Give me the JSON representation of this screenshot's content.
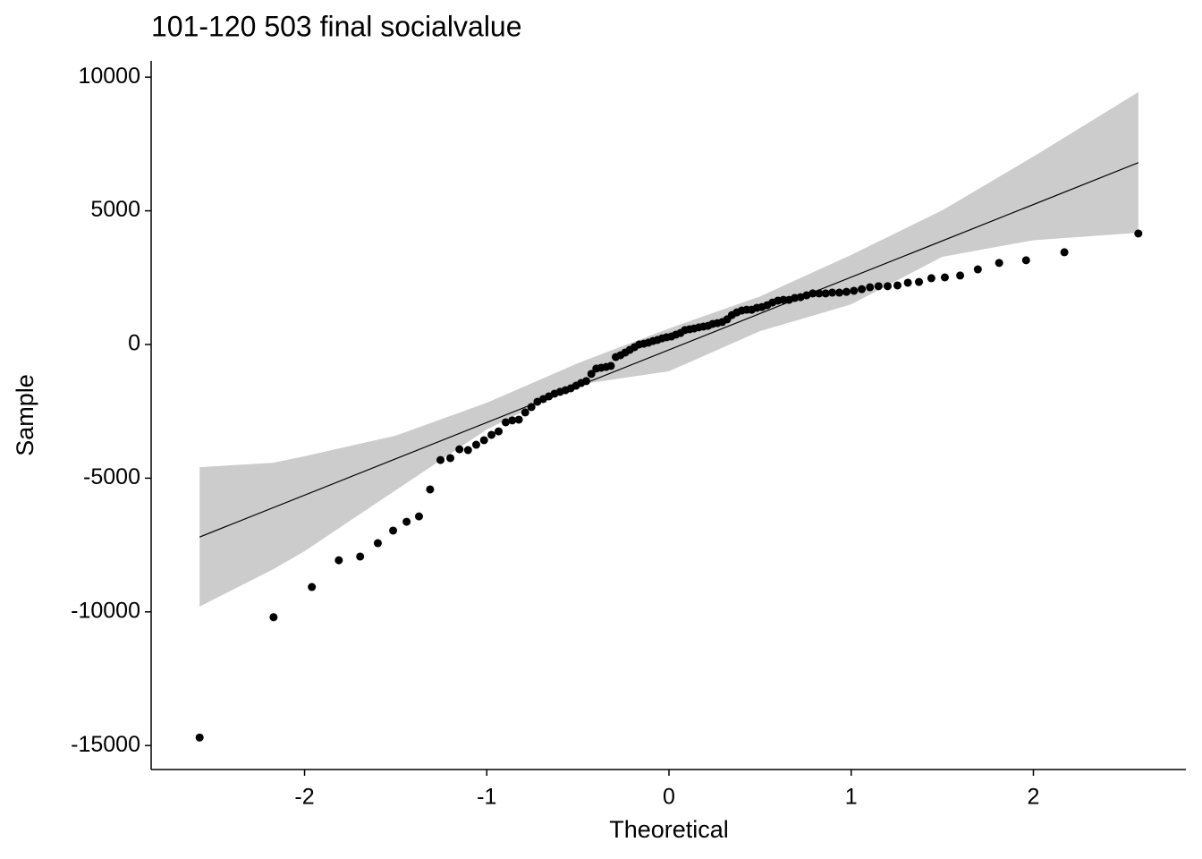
{
  "chart_data": {
    "type": "scatter",
    "title": "101-120 503 final socialvalue",
    "x_label": "Theoretical",
    "y_label": "Sample",
    "x": [
      -2.576,
      -2.17,
      -1.96,
      -1.812,
      -1.695,
      -1.598,
      -1.514,
      -1.44,
      -1.372,
      -1.311,
      -1.254,
      -1.2,
      -1.15,
      -1.103,
      -1.058,
      -1.015,
      -0.974,
      -0.935,
      -0.896,
      -0.86,
      -0.824,
      -0.789,
      -0.755,
      -0.722,
      -0.69,
      -0.659,
      -0.628,
      -0.598,
      -0.568,
      -0.539,
      -0.51,
      -0.482,
      -0.454,
      -0.426,
      -0.399,
      -0.372,
      -0.345,
      -0.319,
      -0.292,
      -0.266,
      -0.24,
      -0.215,
      -0.189,
      -0.164,
      -0.138,
      -0.113,
      -0.088,
      -0.063,
      -0.038,
      -0.013,
      0.013,
      0.038,
      0.063,
      0.088,
      0.113,
      0.138,
      0.164,
      0.189,
      0.215,
      0.24,
      0.266,
      0.292,
      0.319,
      0.345,
      0.372,
      0.399,
      0.426,
      0.454,
      0.482,
      0.51,
      0.539,
      0.568,
      0.598,
      0.628,
      0.659,
      0.69,
      0.722,
      0.755,
      0.789,
      0.824,
      0.86,
      0.896,
      0.935,
      0.974,
      1.015,
      1.058,
      1.103,
      1.15,
      1.2,
      1.254,
      1.311,
      1.372,
      1.44,
      1.514,
      1.598,
      1.695,
      1.812,
      1.96,
      2.17,
      2.576
    ],
    "y": [
      -14700,
      -10200,
      -9070,
      -8070,
      -7930,
      -7430,
      -6960,
      -6630,
      -6430,
      -5420,
      -4320,
      -4250,
      -3920,
      -3950,
      -3750,
      -3580,
      -3380,
      -3250,
      -2910,
      -2840,
      -2810,
      -2540,
      -2340,
      -2140,
      -2040,
      -1940,
      -1840,
      -1770,
      -1710,
      -1640,
      -1540,
      -1440,
      -1370,
      -1100,
      -900,
      -870,
      -840,
      -800,
      -470,
      -400,
      -300,
      -200,
      -100,
      0,
      30,
      70,
      130,
      170,
      230,
      270,
      300,
      370,
      430,
      540,
      570,
      600,
      640,
      670,
      700,
      770,
      800,
      840,
      940,
      1100,
      1200,
      1270,
      1300,
      1300,
      1370,
      1400,
      1470,
      1570,
      1640,
      1670,
      1670,
      1740,
      1770,
      1840,
      1910,
      1910,
      1910,
      1940,
      1940,
      1970,
      2010,
      2070,
      2140,
      2180,
      2180,
      2210,
      2310,
      2340,
      2480,
      2510,
      2580,
      2810,
      3050,
      3150,
      3450,
      4150
    ],
    "color": "#000000",
    "reference_line": {
      "x": [
        -2.576,
        2.576
      ],
      "y": [
        -7200,
        6800
      ],
      "color": "#000000"
    },
    "band": {
      "x": [
        -2.576,
        -2.17,
        -2,
        -1.5,
        -1,
        -0.5,
        0,
        0.5,
        1,
        1.5,
        2,
        2.576
      ],
      "upper": [
        -4590,
        -4420,
        -4180,
        -3410,
        -2180,
        -700,
        600,
        1800,
        3350,
        5020,
        7030,
        9440
      ],
      "lower": [
        -9800,
        -8400,
        -7730,
        -5450,
        -3180,
        -1500,
        -1000,
        500,
        1500,
        3280,
        3900,
        4180
      ],
      "color": "#cccccc"
    },
    "xlim": [
      -2.842,
      2.837
    ],
    "ylim": [
      -15897,
      10609
    ],
    "xticks": [
      -2,
      -1,
      0,
      1,
      2
    ],
    "yticks": [
      -15000,
      -10000,
      -5000,
      0,
      5000,
      10000
    ]
  }
}
